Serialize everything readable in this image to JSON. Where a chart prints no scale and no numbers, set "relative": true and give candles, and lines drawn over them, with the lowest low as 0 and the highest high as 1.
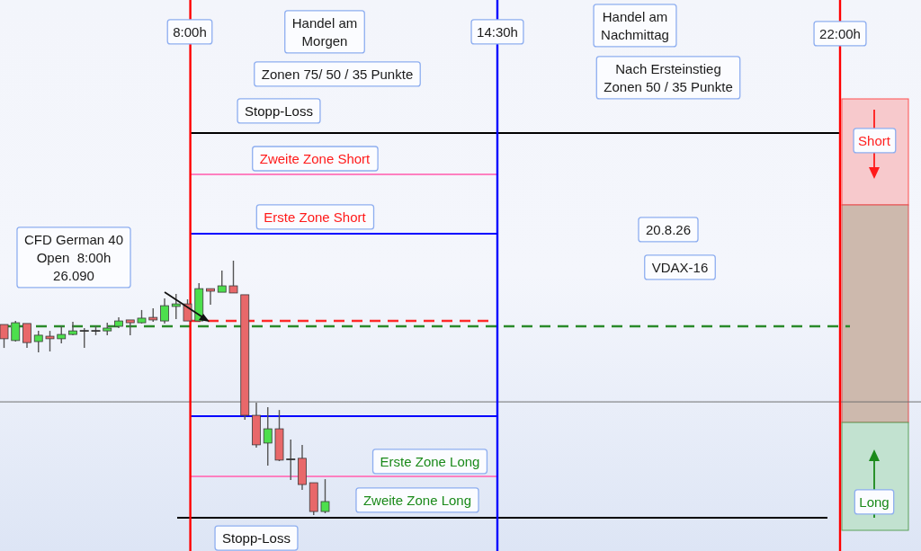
{
  "chart_data": {
    "type": "candlestick",
    "relative": true,
    "categories": [
      null,
      null,
      null,
      null,
      null,
      null,
      null,
      null,
      null,
      null,
      null,
      null,
      null,
      null,
      null,
      null,
      null,
      null,
      null,
      null,
      null,
      null,
      null,
      null,
      null,
      null,
      null,
      null,
      null
    ],
    "ohlc": [
      [
        0.749,
        0.749,
        0.657,
        0.693
      ],
      [
        0.686,
        0.763,
        0.682,
        0.756
      ],
      [
        0.753,
        0.753,
        0.657,
        0.678
      ],
      [
        0.682,
        0.724,
        0.64,
        0.707
      ],
      [
        0.703,
        0.724,
        0.643,
        0.693
      ],
      [
        0.693,
        0.742,
        0.675,
        0.71
      ],
      [
        0.71,
        0.76,
        0.707,
        0.724
      ],
      [
        0.724,
        0.735,
        0.657,
        0.724
      ],
      [
        0.724,
        0.742,
        0.707,
        0.724
      ],
      [
        0.724,
        0.756,
        0.707,
        0.735
      ],
      [
        0.742,
        0.777,
        0.735,
        0.763
      ],
      [
        0.767,
        0.767,
        0.707,
        0.756
      ],
      [
        0.756,
        0.806,
        0.753,
        0.774
      ],
      [
        0.777,
        0.813,
        0.76,
        0.767
      ],
      [
        0.763,
        0.852,
        0.753,
        0.823
      ],
      [
        0.82,
        0.869,
        0.77,
        0.83
      ],
      [
        0.83,
        0.848,
        0.763,
        0.763
      ],
      [
        0.763,
        0.912,
        0.76,
        0.89
      ],
      [
        0.89,
        0.89,
        0.827,
        0.88
      ],
      [
        0.876,
        0.961,
        0.876,
        0.901
      ],
      [
        0.901,
        1,
        0.873,
        0.873
      ],
      [
        0.866,
        0.866,
        0.375,
        0.392
      ],
      [
        0.392,
        0.442,
        0.265,
        0.276
      ],
      [
        0.283,
        0.424,
        0.194,
        0.339
      ],
      [
        0.339,
        0.413,
        0.212,
        0.216
      ],
      [
        0.219,
        0.297,
        0.138,
        0.219
      ],
      [
        0.223,
        0.276,
        0.099,
        0.12
      ],
      [
        0.127,
        0.127,
        0,
        0.014
      ],
      [
        0.014,
        0.141,
        0.007,
        0.053
      ]
    ],
    "colors": [
      "#e8686a",
      "#4ddf4d",
      "#e8686a",
      "#4ddf4d",
      "#e8686a",
      "#4ddf4d",
      "#4ddf4d",
      "#333333",
      "#333333",
      "#4ddf4d",
      "#4ddf4d",
      "#e8686a",
      "#4ddf4d",
      "#e8686a",
      "#4ddf4d",
      "#4ddf4d",
      "#e8686a",
      "#4ddf4d",
      "#e8686a",
      "#4ddf4d",
      "#e8686a",
      "#e8686a",
      "#e8686a",
      "#4ddf4d",
      "#e8686a",
      "#333333",
      "#e8686a",
      "#e8686a",
      "#4ddf4d"
    ],
    "ref_lines": [
      {
        "axis": "y",
        "value": 1.502,
        "label": "Stopp-Loss",
        "color": "#000000"
      },
      {
        "axis": "y",
        "value": 1.339,
        "label": "Zweite Zone Short",
        "color": "#ff80c0"
      },
      {
        "axis": "y",
        "value": 1.106,
        "label": "Erste Zone Short",
        "color": "#0000ff"
      },
      {
        "axis": "y",
        "value": 0.763,
        "color": "#ff2a2a",
        "line_style": "dashed"
      },
      {
        "axis": "y",
        "value": 0.742,
        "color": "#2a8a2a",
        "line_style": "dashed"
      },
      {
        "axis": "y",
        "value": 0.445,
        "color": "#707070"
      },
      {
        "axis": "y",
        "value": 0.389,
        "label": "Erste Zone Long",
        "color": "#0000ff"
      },
      {
        "axis": "y",
        "value": 0.152,
        "label": "Zweite Zone Long",
        "color": "#ff80c0"
      },
      {
        "axis": "y",
        "value": -0.011,
        "label": "Stopp-Loss",
        "color": "#000000"
      }
    ],
    "annotations": [
      "8:00h",
      "Handel am\nMorgen",
      "14:30h",
      "Handel am\nNachmittag",
      "22:00h",
      "Zonen 75/ 50 / 35 Punkte",
      "Nach Ersteinstieg\nZonen 50 / 35 Punkte",
      "Short",
      "20.8.26",
      "CFD German 40\nOpen  8:00h\n26.090",
      "VDAX-16",
      "Long"
    ]
  }
}
